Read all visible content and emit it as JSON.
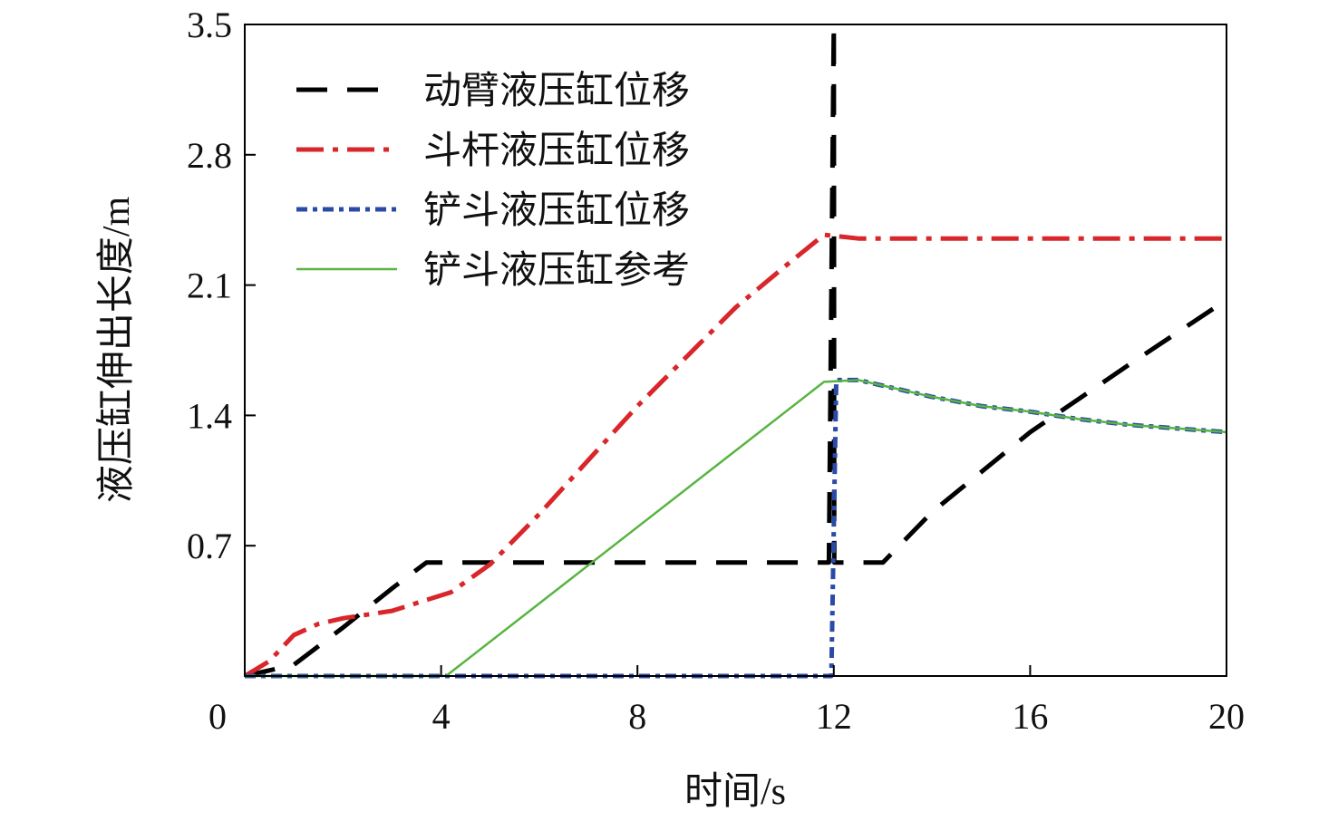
{
  "chart_data": {
    "type": "line",
    "title": "",
    "xlabel": "时间/s",
    "ylabel": "液压缸伸出长度/m",
    "xlim": [
      0,
      20
    ],
    "ylim": [
      0,
      3.5
    ],
    "xticks": [
      0,
      4,
      8,
      12,
      16,
      20
    ],
    "xtick_labels": [
      "0",
      "4",
      "8",
      "12",
      "16",
      "20"
    ],
    "yticks": [
      0.7,
      1.4,
      2.1,
      2.8,
      3.5
    ],
    "ytick_labels": [
      "0.7",
      "1.4",
      "2.1",
      "2.8",
      "3.5"
    ],
    "grid": false,
    "legend_position": "top-left",
    "series": [
      {
        "name": "动臂液压缸位移",
        "color": "#000000",
        "style": "dashed",
        "x": [
          0,
          1.0,
          2.0,
          3.0,
          3.7,
          4.5,
          8,
          11.9,
          12.0,
          12.01,
          12.5,
          13.0,
          14,
          16,
          18,
          20
        ],
        "y": [
          0,
          0.06,
          0.26,
          0.47,
          0.61,
          0.61,
          0.61,
          0.61,
          3.5,
          0.61,
          0.61,
          0.61,
          0.88,
          1.31,
          1.67,
          2.02
        ]
      },
      {
        "name": "斗杆液压缸位移",
        "color": "#d9262a",
        "style": "dashdot",
        "x": [
          0,
          0.5,
          1.0,
          1.5,
          2.0,
          3.0,
          4.2,
          5.0,
          6.0,
          8.0,
          10.0,
          11.0,
          11.8,
          12.5,
          14,
          16,
          20
        ],
        "y": [
          0,
          0.08,
          0.22,
          0.28,
          0.31,
          0.35,
          0.45,
          0.6,
          0.87,
          1.45,
          1.98,
          2.2,
          2.37,
          2.35,
          2.35,
          2.35,
          2.35
        ]
      },
      {
        "name": "铲斗液压缸位移",
        "color": "#2b4aa8",
        "style": "dotted",
        "x": [
          0,
          11.95,
          12.05,
          12.5,
          14,
          15,
          16,
          17,
          18,
          19,
          20
        ],
        "y": [
          0,
          0,
          1.59,
          1.59,
          1.5,
          1.45,
          1.42,
          1.38,
          1.35,
          1.33,
          1.31
        ]
      },
      {
        "name": "铲斗液压缸参考",
        "color": "#58b440",
        "style": "solid",
        "x": [
          0,
          4.1,
          11.8,
          12.5,
          14,
          15,
          16,
          17,
          18,
          19,
          20
        ],
        "y": [
          0,
          0,
          1.58,
          1.59,
          1.5,
          1.45,
          1.42,
          1.38,
          1.35,
          1.33,
          1.31
        ]
      }
    ]
  }
}
